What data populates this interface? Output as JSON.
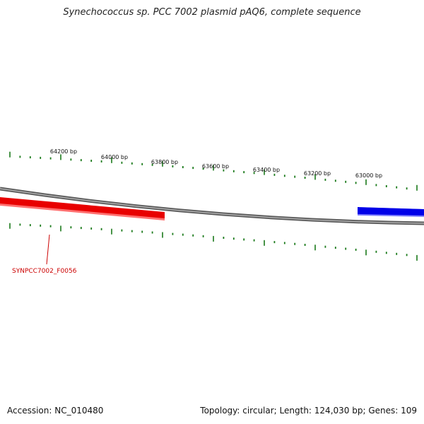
{
  "title": "Synechococcus sp. PCC 7002 plasmid pAQ6, complete sequence",
  "footer": {
    "accession": "Accession: NC_010480",
    "summary": "Topology: circular; Length: 124,030 bp; Genes: 109"
  },
  "scale_labels": [
    "64200 bp",
    "64000 bp",
    "63800 bp",
    "63600 bp",
    "63400 bp",
    "63200 bp",
    "63000 bp"
  ],
  "genes": [
    {
      "label": "SYNPCC7002_F0056",
      "color": "#e00000",
      "strand": "forward"
    },
    {
      "label": "",
      "color": "#0000e0",
      "strand": "reverse"
    }
  ],
  "colors": {
    "tick": "#1a7a1a",
    "backbone": "#808080",
    "gene_forward": "#e00000",
    "gene_reverse": "#0000e0",
    "gene_label": "#cc0000"
  }
}
